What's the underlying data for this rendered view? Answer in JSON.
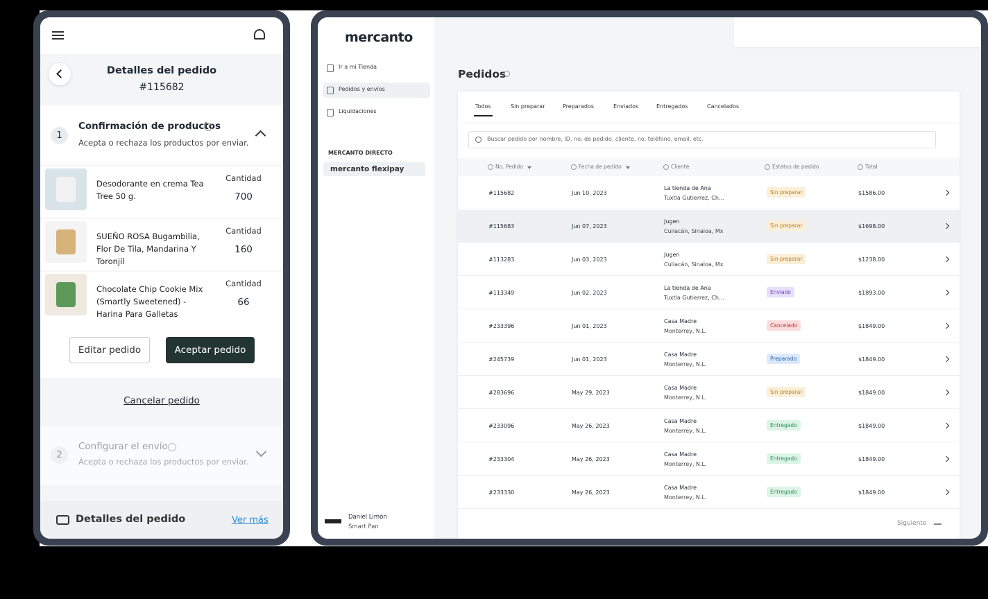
{
  "mobile": {
    "header": {
      "title": "Detalles del pedido",
      "order_id": "#115682"
    },
    "step1": {
      "number": 1,
      "title": "Confirmación de productos",
      "subtitle": "Acepta o rechaza los productos por enviar."
    },
    "products": [
      {
        "name": "Desodorante en crema Tea Tree 50 g.",
        "quantity_label": "Cantidad",
        "quantity": 700
      },
      {
        "name": "SUEÑO ROSA Bugambilia, Flor De Tila, Mandarina Y Toronjil",
        "quantity_label": "Cantidad",
        "quantity": 160
      },
      {
        "name": "Chocolate Chip Cookie Mix (Smartly Sweetened) - Harina Para Galletas",
        "quantity_label": "Cantidad",
        "quantity": 66
      }
    ],
    "buttons": {
      "edit": "Editar pedido",
      "accept": "Aceptar pedido",
      "cancel": "Cancelar pedido"
    },
    "step2": {
      "number": 2,
      "title": "Configurar el envío",
      "subtitle": "Acepta o rechaza los productos por enviar."
    },
    "footer": {
      "title": "Detalles del pedido",
      "link": "Ver más"
    }
  },
  "desktop": {
    "logo": "mercanto",
    "nav": [
      "Ir a mi Tienda",
      "Pedidos y envíos",
      "Liquidaciones"
    ],
    "section_label": "MERCANTO DIRECTO",
    "flexipay": "mercanto flexipay",
    "user": {
      "name": "Daniel Limón",
      "company": "Smart Pan"
    },
    "page_title": "Pedidos",
    "tabs": [
      "Todos",
      "Sin preparar",
      "Preparados",
      "Enviados",
      "Entregados",
      "Cancelados"
    ],
    "search_placeholder": "Buscar pedido por nombre, ID, no. de pedido, cliente, no. teléfono, email, etc.",
    "columns": [
      "No. Pedido",
      "Fecha de pedido",
      "Cliente",
      "Estatus de pedido",
      "Total"
    ],
    "rows": [
      {
        "id": "#115682",
        "date": "Jun 10, 2023",
        "client": "La tienda de Ana",
        "location": "Tuxtla Gutierrez, Ch...",
        "status": {
          "label": "Sin preparar",
          "bg": "#fcefd8",
          "fg": "#b7802a"
        },
        "total": "$1586.00"
      },
      {
        "id": "#115683",
        "date": "Jun 07, 2023",
        "client": "Jugen",
        "location": "Culiacán, Sinaloa, Mx",
        "status": {
          "label": "Sin preparar",
          "bg": "#fcefd8",
          "fg": "#b7802a"
        },
        "total": "$1698.00"
      },
      {
        "id": "#113283",
        "date": "Jun 03, 2023",
        "client": "Jugen",
        "location": "Culiacán, Sinaloa, Mx",
        "status": {
          "label": "Sin preparar",
          "bg": "#fcefd8",
          "fg": "#b7802a"
        },
        "total": "$1238.00"
      },
      {
        "id": "#113349",
        "date": "Jun 02, 2023",
        "client": "La tienda de Ana",
        "location": "Tuxtla Gutierrez, Ch...",
        "status": {
          "label": "Enviado",
          "bg": "#e6defa",
          "fg": "#6a4bb8"
        },
        "total": "$1893.00"
      },
      {
        "id": "#233396",
        "date": "Jun 01, 2023",
        "client": "Casa Madre",
        "location": "Monterrey, N.L.",
        "status": {
          "label": "Cancelado",
          "bg": "#fbdcdc",
          "fg": "#b93a3a"
        },
        "total": "$1849.00"
      },
      {
        "id": "#245739",
        "date": "Jun 01, 2023",
        "client": "Casa Madre",
        "location": "Monterrey, N.L.",
        "status": {
          "label": "Preparado",
          "bg": "#dbe9fa",
          "fg": "#2f62a8"
        },
        "total": "$1849.00"
      },
      {
        "id": "#283696",
        "date": "May 29, 2023",
        "client": "Casa Madre",
        "location": "Monterrey, N.L.",
        "status": {
          "label": "Sin preparar",
          "bg": "#fcefd8",
          "fg": "#b7802a"
        },
        "total": "$1849.00"
      },
      {
        "id": "#233096",
        "date": "May 26, 2023",
        "client": "Casa Madre",
        "location": "Monterrey, N.L.",
        "status": {
          "label": "Entregado",
          "bg": "#dcf4e6",
          "fg": "#2f8a57"
        },
        "total": "$1849.00"
      },
      {
        "id": "#233304",
        "date": "May 26, 2023",
        "client": "Casa Madre",
        "location": "Monterrey, N.L.",
        "status": {
          "label": "Entregado",
          "bg": "#dcf4e6",
          "fg": "#2f8a57"
        },
        "total": "$1849.00"
      },
      {
        "id": "#233330",
        "date": "May 26, 2023",
        "client": "Casa Madre",
        "location": "Monterrey, N.L.",
        "status": {
          "label": "Entregado",
          "bg": "#dcf4e6",
          "fg": "#2f8a57"
        },
        "total": "$1849.00"
      }
    ],
    "next": "Siguiente"
  }
}
